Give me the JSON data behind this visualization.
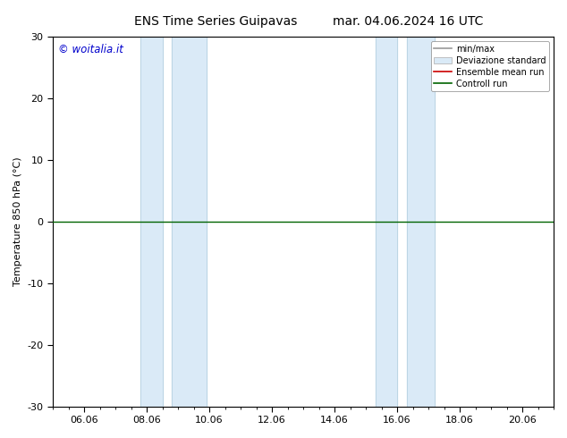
{
  "title_left": "ENS Time Series Guipavas",
  "title_right": "mar. 04.06.2024 16 UTC",
  "ylabel": "Temperature 850 hPa (°C)",
  "ylim": [
    -30,
    30
  ],
  "yticks": [
    -30,
    -20,
    -10,
    0,
    10,
    20,
    30
  ],
  "xtick_labels": [
    "06.06",
    "08.06",
    "10.06",
    "12.06",
    "14.06",
    "16.06",
    "18.06",
    "20.06"
  ],
  "xtick_positions": [
    1,
    3,
    5,
    7,
    9,
    11,
    13,
    15
  ],
  "xlim": [
    0,
    16
  ],
  "watermark": "© woitalia.it",
  "watermark_color": "#0000cc",
  "bg_color": "#ffffff",
  "plot_bg_color": "#ffffff",
  "shaded_bands": [
    [
      2.7,
      3.2
    ],
    [
      3.5,
      4.8
    ],
    [
      10.5,
      11.0
    ],
    [
      11.3,
      12.5
    ]
  ],
  "band_color": "#daeaf7",
  "band_border_color": "#b0ccdd",
  "control_run_y": 0.0,
  "control_run_color": "#006400",
  "ensemble_mean_color": "#cc0000",
  "font_size": 8,
  "title_font_size": 10,
  "legend_font_size": 7
}
